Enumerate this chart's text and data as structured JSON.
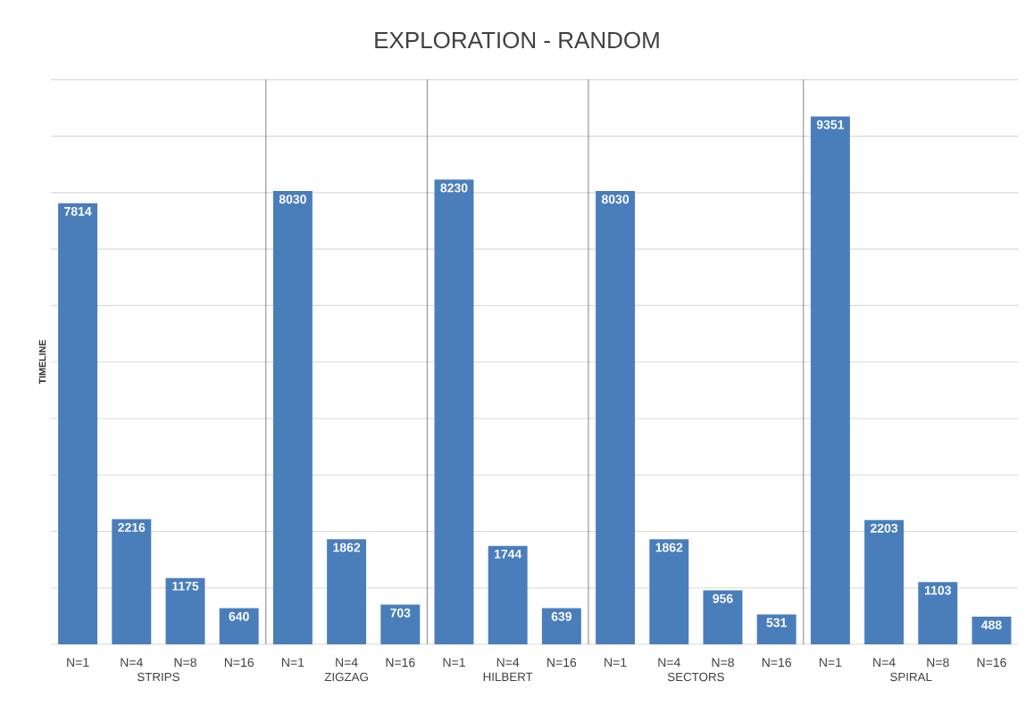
{
  "chart_data": [
    {
      "type": "bar",
      "ylabel": "TIMELINE",
      "xlabel": "STRIPS",
      "categories": [
        "N=1",
        "N=4",
        "N=8",
        "N=16"
      ],
      "values": [
        7814,
        2216,
        1175,
        640
      ],
      "color": "#4a7ebb",
      "data_labels": true,
      "grid": "y",
      "tick_labels": "x"
    },
    {
      "type": "bar",
      "xlabel": "ZIGZAG",
      "categories": [
        "N=1",
        "N=4",
        "N=16"
      ],
      "values": [
        8030,
        1862,
        703
      ],
      "color": "#4a7ebb",
      "data_labels": true,
      "grid": "y",
      "tick_labels": "x"
    },
    {
      "type": "bar",
      "title": "EXPLORATION - RANDOM",
      "xlabel": "HILBERT",
      "categories": [
        "N=1",
        "N=4",
        "N=16"
      ],
      "values": [
        8230,
        1744,
        639
      ],
      "color": "#4a7ebb",
      "data_labels": true,
      "grid": "y",
      "tick_labels": "x"
    },
    {
      "type": "bar",
      "xlabel": "SECTORS",
      "categories": [
        "N=1",
        "N=4",
        "N=8",
        "N=16"
      ],
      "values": [
        8030,
        1862,
        956,
        531
      ],
      "color": "#4a7ebb",
      "data_labels": true,
      "grid": "y",
      "tick_labels": "x"
    },
    {
      "type": "bar",
      "xlabel": "SPIRAL",
      "categories": [
        "N=1",
        "N=4",
        "N=8",
        "N=16"
      ],
      "values": [
        9351,
        2203,
        1103,
        488
      ],
      "color": "#4a7ebb",
      "data_labels": true,
      "grid": "y",
      "tick_labels": "x"
    }
  ]
}
